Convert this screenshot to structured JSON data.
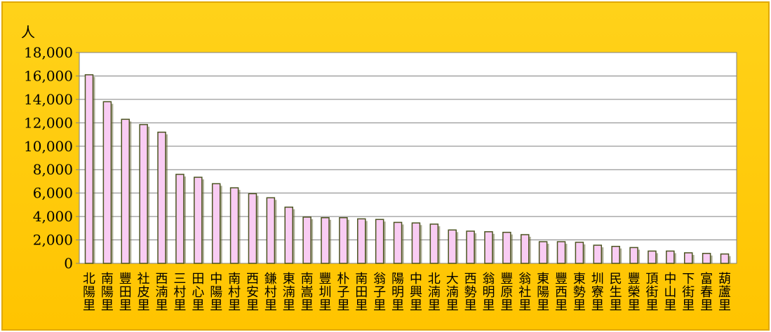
{
  "chart_data": {
    "type": "bar",
    "title": "",
    "xlabel": "",
    "ylabel": "人",
    "ylim": [
      0,
      18000
    ],
    "yticks": [
      "0",
      "2,000",
      "4,000",
      "6,000",
      "8,000",
      "10,000",
      "12,000",
      "14,000",
      "16,000",
      "18,000"
    ],
    "grid": true,
    "legend": "none",
    "categories": [
      "北陽里",
      "南陽里",
      "豐田里",
      "社皮里",
      "西湳里",
      "三村里",
      "田心里",
      "中陽里",
      "南村里",
      "西安里",
      "鎌村里",
      "東湳里",
      "南嵩里",
      "豐圳里",
      "朴子里",
      "南田里",
      "翁子里",
      "陽明里",
      "中興里",
      "北湳里",
      "大湳里",
      "西勢里",
      "翁明里",
      "豐原里",
      "翁社里",
      "東陽里",
      "豐西里",
      "東勢里",
      "圳寮里",
      "民生里",
      "豐榮里",
      "頂街里",
      "中山里",
      "下街里",
      "富春里",
      "葫蘆里"
    ],
    "values": [
      16100,
      13800,
      12300,
      11850,
      11200,
      7600,
      7350,
      6800,
      6450,
      5950,
      5600,
      4800,
      3950,
      3900,
      3900,
      3800,
      3750,
      3500,
      3450,
      3350,
      2850,
      2750,
      2700,
      2650,
      2450,
      1850,
      1850,
      1800,
      1550,
      1450,
      1350,
      1050,
      1050,
      900,
      850,
      800
    ]
  },
  "colors": {
    "frame": "#FFCC00",
    "plot_bg": "#FFFFFF",
    "bar_fill": "#F9CCF3",
    "bar_stroke": "#4B5320",
    "gridline": "#808080",
    "bar_shadow": "#6B6B40"
  }
}
